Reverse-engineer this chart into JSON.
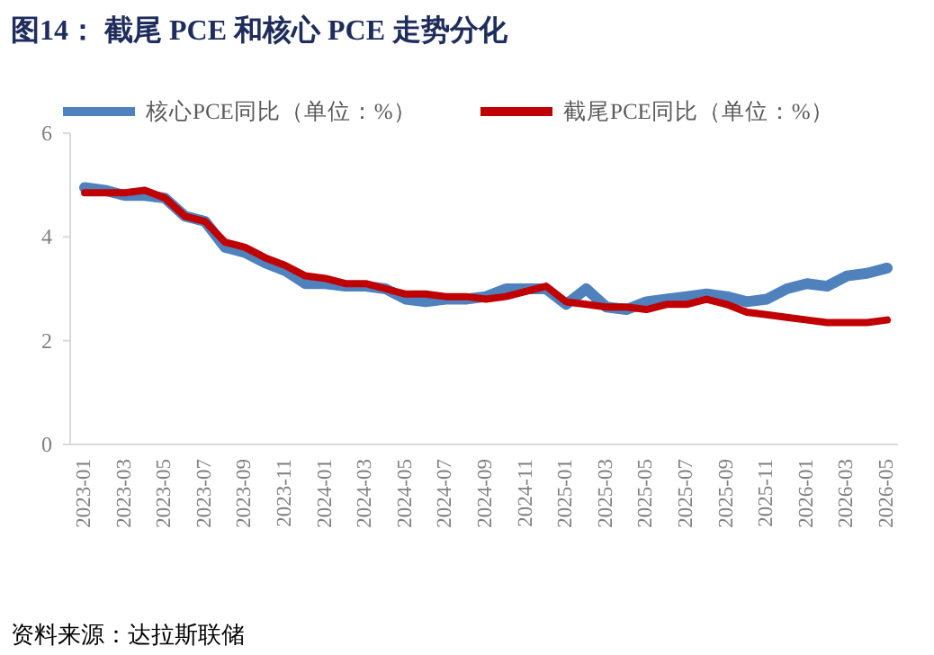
{
  "chart_data": {
    "type": "line",
    "title": "图14：  截尾 PCE 和核心 PCE 走势分化",
    "categories": [
      "2023-01",
      null,
      "2023-03",
      null,
      "2023-05",
      null,
      "2023-07",
      null,
      "2023-09",
      null,
      "2023-11",
      null,
      "2024-01",
      null,
      "2024-03",
      null,
      "2024-05",
      null,
      "2024-07",
      null,
      "2024-09",
      null,
      "2024-11",
      null,
      "2025-01",
      null,
      "2025-03",
      null,
      "2025-05",
      null,
      "2025-07",
      null,
      "2025-09",
      null,
      "2025-11",
      null,
      "2026-01",
      null,
      "2026-03",
      null,
      "2026-05"
    ],
    "series": [
      {
        "name": "核心PCE同比（单位：%）",
        "color": "#4f81bd",
        "values": [
          4.95,
          4.9,
          4.8,
          4.8,
          4.75,
          4.4,
          4.3,
          3.8,
          3.7,
          3.5,
          3.35,
          3.1,
          3.1,
          3.05,
          3.05,
          3.0,
          2.8,
          2.75,
          2.8,
          2.8,
          2.85,
          3.0,
          3.0,
          3.0,
          2.7,
          3.0,
          2.65,
          2.6,
          2.75,
          2.8,
          2.85,
          2.9,
          2.85,
          2.75,
          2.8,
          3.0,
          3.1,
          3.05,
          3.25,
          3.3,
          3.4
        ]
      },
      {
        "name": "截尾PCE同比（单位：%）",
        "color": "#c00000",
        "values": [
          4.85,
          4.85,
          4.85,
          4.9,
          4.75,
          4.4,
          4.3,
          3.9,
          3.8,
          3.6,
          3.45,
          3.25,
          3.2,
          3.1,
          3.1,
          3.0,
          2.9,
          2.9,
          2.85,
          2.85,
          2.8,
          2.85,
          2.95,
          3.05,
          2.75,
          2.7,
          2.65,
          2.65,
          2.6,
          2.7,
          2.7,
          2.8,
          2.7,
          2.55,
          2.5,
          2.45,
          2.4,
          2.35,
          2.35,
          2.35,
          2.4
        ]
      }
    ],
    "ylim": [
      0,
      6
    ],
    "yticks": [
      0,
      2,
      4,
      6
    ],
    "grid": false,
    "legend": "top",
    "annotations": [
      "资料来源：达拉斯联储"
    ]
  }
}
